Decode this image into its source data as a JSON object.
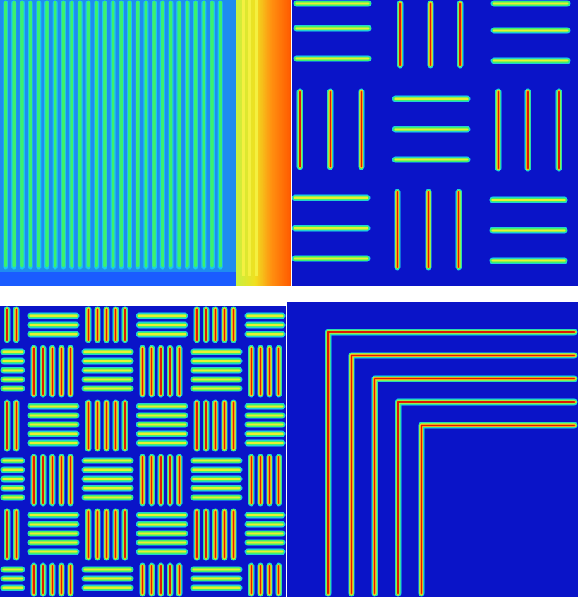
{
  "colormap": {
    "background_blue": "#0a14c8",
    "blue": "#1a5cff",
    "cyan": "#19c8f0",
    "green": "#3cf06e",
    "yellow": "#e8f030",
    "orange": "#ff8a10",
    "red": "#e01a00"
  },
  "panels": [
    {
      "name": "dense-vertical-lines-panel"
    },
    {
      "name": "three-line-checker-panel"
    },
    {
      "name": "five-line-checker-panel"
    },
    {
      "name": "nested-corner-lines-panel"
    }
  ]
}
